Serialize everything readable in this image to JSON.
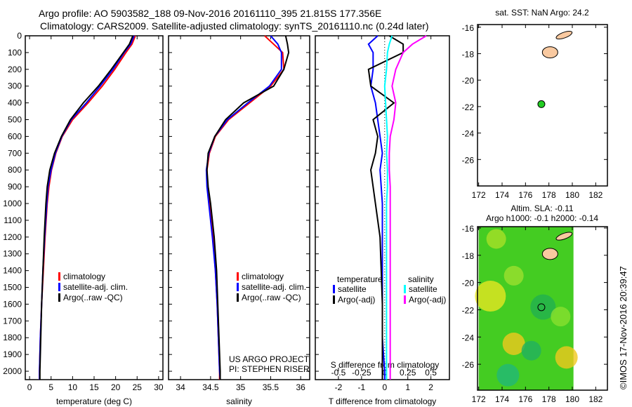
{
  "title_line1": "Argo profile: AO 5903582_188 09-Nov-2016 20161110_395 21.815S 177.356E",
  "title_line2": "Climatology: CARS2009. Satellite-adjusted climatology: synTS_20161110.nc (0.24d later)",
  "colors": {
    "climatology": "#ff0000",
    "satellite": "#0000ff",
    "argo": "#000000",
    "sal_satellite": "#00ffff",
    "sal_argo": "#ff00ff",
    "land": "#f9c9a0"
  },
  "chart_data": [
    {
      "type": "line",
      "name": "temperature",
      "xlabel": "temperature (deg C)",
      "ylabel": "depth",
      "xlim": [
        -1,
        31
      ],
      "ylim": [
        2050,
        0
      ],
      "xticks": [
        "0",
        "5",
        "10",
        "15",
        "20",
        "25",
        "30"
      ],
      "yticks": [
        "0",
        "100",
        "200",
        "300",
        "400",
        "500",
        "600",
        "700",
        "800",
        "900",
        "1000",
        "1100",
        "1200",
        "1300",
        "1400",
        "1500",
        "1600",
        "1700",
        "1800",
        "1900",
        "2000"
      ],
      "depth": [
        0,
        50,
        100,
        200,
        300,
        400,
        500,
        600,
        700,
        800,
        900,
        1000,
        1200,
        1400,
        1600,
        1800,
        2000,
        2050
      ],
      "series": [
        {
          "name": "climatology",
          "values": [
            24.6,
            23.8,
            22.4,
            19.8,
            16.9,
            13.6,
            10.0,
            7.6,
            6.1,
            5.1,
            4.5,
            4.1,
            3.6,
            3.2,
            2.8,
            2.5,
            2.3,
            2.3
          ]
        },
        {
          "name": "satellite-adj. clim.",
          "values": [
            24.3,
            23.5,
            22.0,
            19.4,
            16.4,
            13.2,
            9.7,
            7.5,
            6.0,
            5.0,
            4.3,
            4.0,
            3.5,
            3.1,
            2.8,
            2.5,
            2.3,
            2.3
          ]
        },
        {
          "name": "Argo(..raw -QC)",
          "values": [
            24.0,
            23.2,
            21.8,
            19.0,
            16.0,
            12.5,
            9.5,
            7.4,
            5.8,
            4.7,
            4.1,
            3.8,
            3.4,
            3.1,
            2.8,
            2.6,
            2.4,
            2.4
          ]
        }
      ],
      "legend": [
        "climatology",
        "satellite-adj. clim.",
        "Argo(..raw -QC)"
      ]
    },
    {
      "type": "line",
      "name": "salinity",
      "xlabel": "salinity",
      "xlim": [
        33.8,
        36.15
      ],
      "ylim": [
        2050,
        0
      ],
      "xticks": [
        "34",
        "34.5",
        "35",
        "35.5",
        "36"
      ],
      "depth": [
        0,
        50,
        100,
        200,
        300,
        400,
        500,
        600,
        700,
        800,
        900,
        1000,
        1200,
        1400,
        1600,
        1800,
        2000,
        2050
      ],
      "series": [
        {
          "name": "climatology",
          "values": [
            35.4,
            35.55,
            35.7,
            35.72,
            35.5,
            35.15,
            34.8,
            34.58,
            34.48,
            34.44,
            34.45,
            34.48,
            34.54,
            34.58,
            34.61,
            34.63,
            34.65,
            34.65
          ]
        },
        {
          "name": "satellite-adj. clim.",
          "values": [
            35.5,
            35.62,
            35.68,
            35.68,
            35.48,
            35.12,
            34.78,
            34.57,
            34.47,
            34.43,
            34.44,
            34.47,
            34.53,
            34.58,
            34.61,
            34.63,
            34.65,
            34.66
          ]
        },
        {
          "name": "Argo(..raw -QC)",
          "values": [
            35.75,
            35.78,
            35.8,
            35.72,
            35.55,
            35.05,
            34.75,
            34.57,
            34.46,
            34.44,
            34.46,
            34.5,
            34.56,
            34.6,
            34.62,
            34.64,
            34.66,
            34.66
          ]
        }
      ],
      "legend": [
        "climatology",
        "satellite-adj. clim.",
        "Argo(..raw -QC)"
      ],
      "annotation": [
        "US ARGO PROJECT",
        "PI: STEPHEN RISER"
      ]
    },
    {
      "type": "line",
      "name": "difference",
      "xlabel": "T difference from climatology",
      "x2label": "S difference from climatology",
      "xlim": [
        -3,
        2.8
      ],
      "ylim": [
        2050,
        0
      ],
      "xticks": [
        "-2",
        "-1",
        "0",
        "1",
        "2"
      ],
      "x2ticks": [
        "-0.5",
        "-0.25",
        "0",
        "0.25",
        "0.5"
      ],
      "depth": [
        0,
        50,
        100,
        200,
        300,
        400,
        500,
        600,
        700,
        800,
        900,
        1000,
        1200,
        1400,
        1600,
        1800,
        2000,
        2050
      ],
      "series": [
        {
          "name": "temperature satellite",
          "axis": "T",
          "values": [
            -0.3,
            -0.7,
            -0.5,
            -0.5,
            -0.6,
            -0.4,
            -0.3,
            -0.2,
            -0.1,
            -0.2,
            -0.15,
            -0.1,
            -0.1,
            -0.1,
            -0.1,
            -0.1,
            0,
            0
          ]
        },
        {
          "name": "temperature Argo(-adj)",
          "axis": "T",
          "values": [
            0.2,
            0.8,
            0.8,
            -0.7,
            -0.6,
            0.4,
            -0.5,
            -0.3,
            -0.4,
            -0.6,
            -0.5,
            -0.4,
            -0.2,
            -0.15,
            -0.1,
            -0.1,
            -0.1,
            -0.1
          ]
        },
        {
          "name": "salinity satellite",
          "axis": "S",
          "values": [
            0.08,
            0.05,
            0.03,
            0.02,
            0,
            0.01,
            0.02,
            0.03,
            0.02,
            0.03,
            0.03,
            0.02,
            0.02,
            0.02,
            0.02,
            0.02,
            0.02,
            0.02
          ]
        },
        {
          "name": "salinity Argo(-adj)",
          "axis": "S",
          "values": [
            0.45,
            0.3,
            0.2,
            0.12,
            0.08,
            0.12,
            0.1,
            0.06,
            0.05,
            0.05,
            0.06,
            0.06,
            0.06,
            0.06,
            0.06,
            0.06,
            0.06,
            0.06
          ]
        }
      ],
      "legend_headers": [
        "temperature",
        "salinity"
      ],
      "legend": [
        "satellite",
        "Argo(-adj)",
        "satellite",
        "Argo(-adj)"
      ]
    },
    {
      "type": "scatter",
      "name": "sst-map",
      "title": "sat. SST: NaN Argo: 24.2",
      "xlim": [
        171.9,
        183
      ],
      "ylim": [
        -28,
        -15.8
      ],
      "xticks": [
        "172",
        "174",
        "176",
        "178",
        "180",
        "182"
      ],
      "yticks": [
        "-16",
        "-18",
        "-20",
        "-22",
        "-24",
        "-26"
      ],
      "point": {
        "lon": 177.356,
        "lat": -21.815
      }
    },
    {
      "type": "heatmap",
      "name": "sla-map",
      "title_line1": "Altim. SLA: -0.11",
      "title_line2": "Argo h1000: -0.1 h2000: -0.14",
      "xlim": [
        171.9,
        183
      ],
      "ylim": [
        -27.9,
        -15.9
      ],
      "xticks": [
        "172",
        "174",
        "176",
        "178",
        "180",
        "182"
      ],
      "yticks": [
        "-16",
        "-18",
        "-20",
        "-22",
        "-24",
        "-26"
      ],
      "point": {
        "lon": 177.356,
        "lat": -21.815
      }
    }
  ],
  "credit": "©IMOS 17-Nov-2016 20:39:47"
}
